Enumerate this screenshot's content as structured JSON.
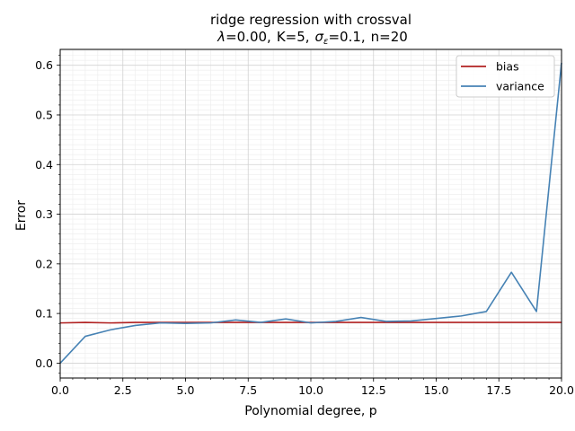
{
  "chart_data": {
    "type": "line",
    "title_line1": "ridge regression with crossval",
    "title_lambda_symbol": "λ",
    "title_lambda_value": "=0.00,",
    "title_k": "K=5,",
    "title_sigma_symbol": "σ",
    "title_sigma_sub": "ε",
    "title_sigma_value": "=0.1,",
    "title_n": "n=20",
    "xlabel": "Polynomial degree, p",
    "ylabel": "Error",
    "xlim": [
      0,
      20
    ],
    "ylim": [
      -0.03,
      0.632
    ],
    "xticks": [
      "0.0",
      "2.5",
      "5.0",
      "7.5",
      "10.0",
      "12.5",
      "15.0",
      "17.5",
      "20.0"
    ],
    "xtick_values": [
      0,
      2.5,
      5,
      7.5,
      10,
      12.5,
      15,
      17.5,
      20
    ],
    "yticks": [
      "0.0",
      "0.1",
      "0.2",
      "0.3",
      "0.4",
      "0.5",
      "0.6"
    ],
    "ytick_values": [
      0,
      0.1,
      0.2,
      0.3,
      0.4,
      0.5,
      0.6
    ],
    "grid": true,
    "legend_position": "top-right",
    "x": [
      0,
      1,
      2,
      3,
      4,
      5,
      6,
      7,
      8,
      9,
      10,
      11,
      12,
      13,
      14,
      15,
      16,
      17,
      18,
      19,
      20
    ],
    "series": [
      {
        "name": "bias",
        "color": "#b22222",
        "values": [
          0.081,
          0.082,
          0.081,
          0.082,
          0.082,
          0.082,
          0.082,
          0.082,
          0.082,
          0.082,
          0.082,
          0.082,
          0.082,
          0.082,
          0.082,
          0.082,
          0.082,
          0.082,
          0.082,
          0.082,
          0.082
        ]
      },
      {
        "name": "variance",
        "color": "#4682b4",
        "values": [
          0.0,
          0.054,
          0.067,
          0.076,
          0.081,
          0.08,
          0.081,
          0.087,
          0.082,
          0.089,
          0.081,
          0.084,
          0.092,
          0.084,
          0.085,
          0.09,
          0.095,
          0.104,
          0.183,
          0.104,
          0.605
        ]
      }
    ]
  }
}
